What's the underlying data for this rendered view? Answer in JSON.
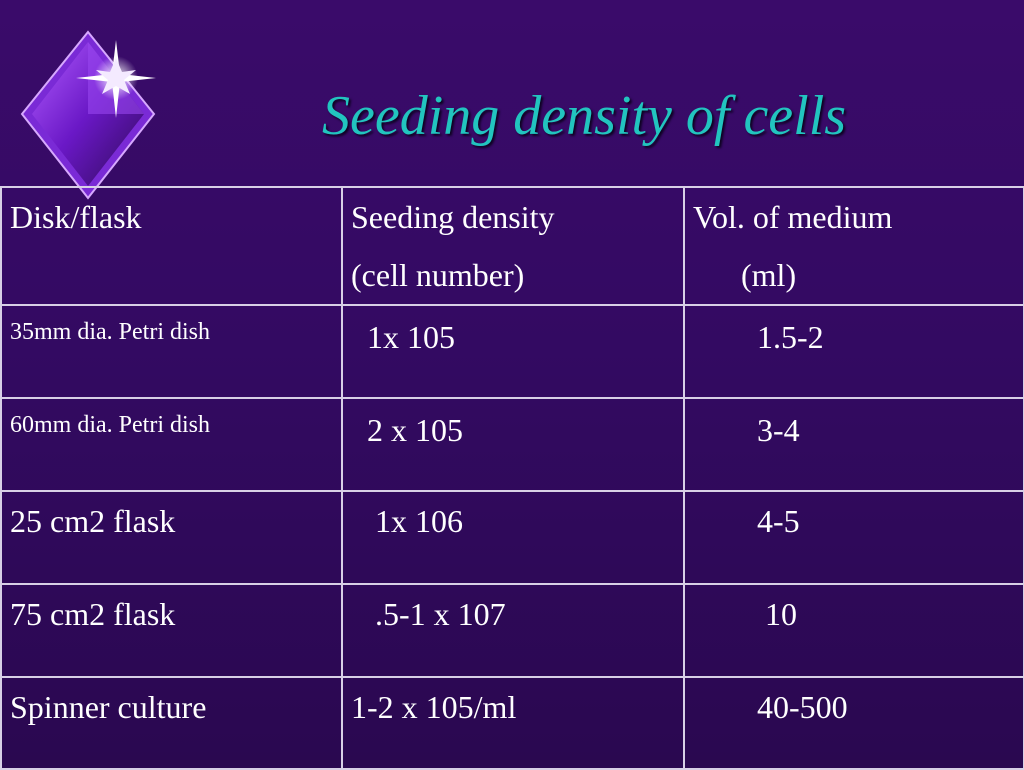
{
  "slide": {
    "title": "Seeding density of cells"
  },
  "table": {
    "headers": [
      "Disk/flask",
      "Seeding density\n(cell number)",
      "Vol. of medium\n      (ml)"
    ],
    "rows": [
      [
        "35mm dia. Petri dish",
        "  1x 105",
        "        1.5-2"
      ],
      [
        "60mm dia. Petri dish",
        "  2 x 105",
        "        3-4"
      ],
      [
        "25 cm2 flask",
        "   1x 106",
        "        4-5"
      ],
      [
        "75 cm2 flask",
        "   .5-1 x 107",
        "         10"
      ],
      [
        "Spinner culture",
        "1-2 x 105/ml",
        "        40-500"
      ]
    ]
  },
  "colors": {
    "background": "#330a62",
    "title": "#22c4bf",
    "text": "#ffffff",
    "border": "#d8d0e6",
    "logo": "#7a2ad6"
  },
  "icons": {
    "logo": "diamond-sparkle-icon"
  }
}
